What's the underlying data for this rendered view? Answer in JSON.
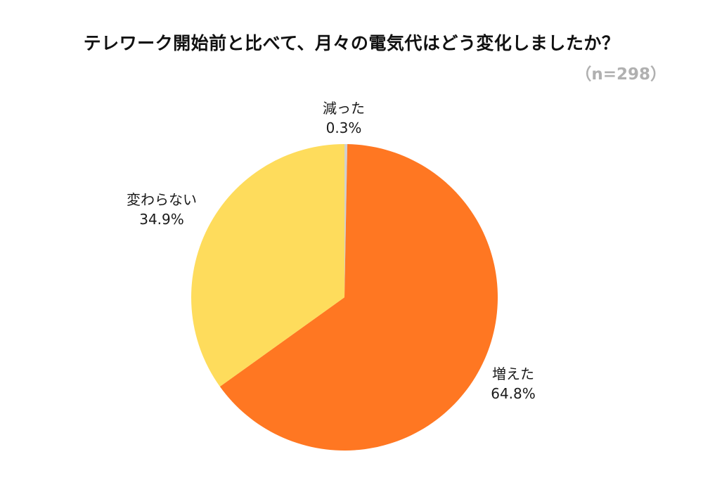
{
  "chart_data": {
    "type": "pie",
    "title": "テレワーク開始前と比べて、月々の電気代はどう変化しましたか？",
    "subtitle": "（n=298）",
    "start_angle_deg": 0,
    "direction": "clockwise",
    "slices": [
      {
        "label": "減った",
        "value": 0.3,
        "value_label": "0.3%",
        "color": "#d0d0d0"
      },
      {
        "label": "増えた",
        "value": 64.8,
        "value_label": "64.8%",
        "color": "#ff7722"
      },
      {
        "label": "変わらない",
        "value": 34.9,
        "value_label": "34.9%",
        "color": "#fedc5c"
      }
    ]
  }
}
